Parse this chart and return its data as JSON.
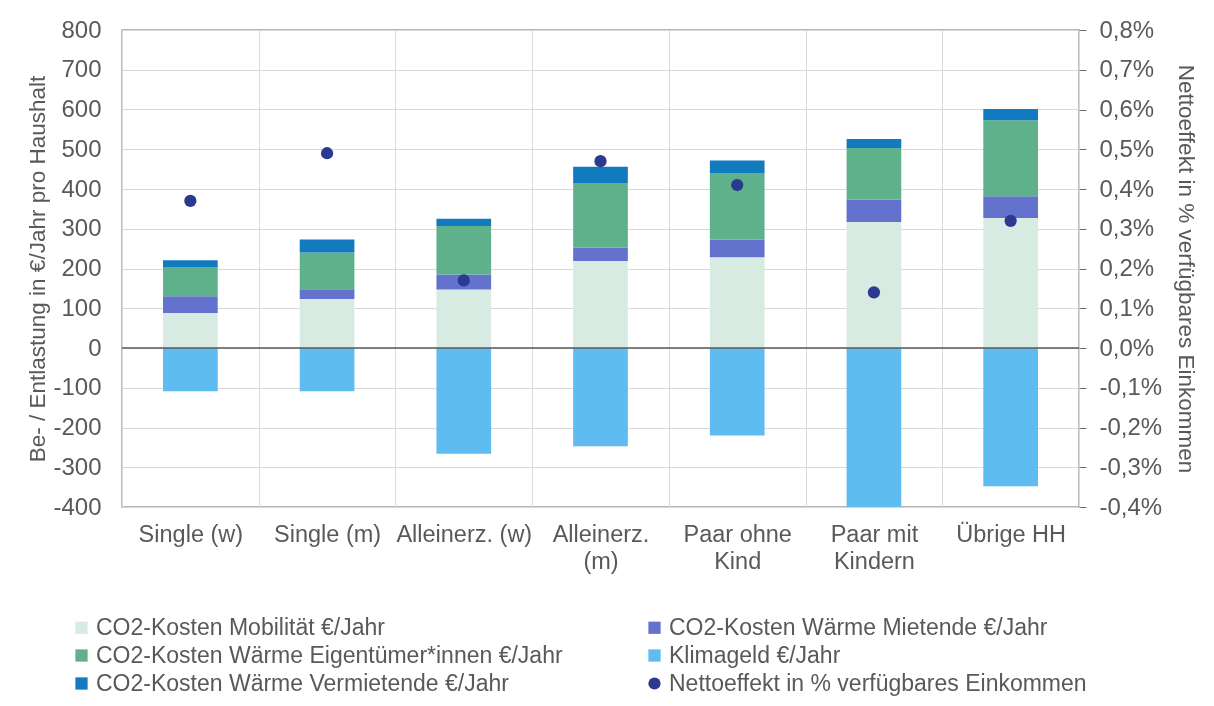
{
  "chart_data": {
    "type": "bar",
    "stacked": true,
    "categories": [
      "Single (w)",
      "Single (m)",
      "Alleinerz. (w)",
      "Alleinerz.\n(m)",
      "Paar ohne\nKind",
      "Paar mit\nKindern",
      "Übrige HH"
    ],
    "series": [
      {
        "name": "CO2-Kosten Mobilität €/Jahr",
        "color": "#d7ebe2",
        "values": [
          88,
          123,
          147,
          219,
          228,
          317,
          327
        ]
      },
      {
        "name": "CO2-Kosten Wärme Mietende €/Jahr",
        "color": "#6372cd",
        "values": [
          42,
          25,
          38,
          34,
          45,
          56,
          55
        ]
      },
      {
        "name": "CO2-Kosten Wärme Eigentümer*innen €/Jahr",
        "color": "#5eb18b",
        "values": [
          74,
          92,
          122,
          162,
          166,
          130,
          191
        ]
      },
      {
        "name": "Klimageld €/Jahr",
        "color": "#5ebcf0",
        "values": [
          -109,
          -109,
          -266,
          -247,
          -220,
          -400,
          -348
        ]
      },
      {
        "name": "CO2-Kosten Wärme Vermietende €/Jahr",
        "color": "#127bbf",
        "values": [
          17,
          33,
          18,
          41,
          33,
          23,
          28
        ]
      },
      {
        "name": "Nettoeffekt in % verfügbares Einkommen",
        "type": "scatter",
        "axis": "y2",
        "color": "#2b3990",
        "x": [
          "Single (w)",
          "Single (m)",
          "Alleinerz. (w)",
          "Alleinerz.\n(m)",
          "Paar ohne\nKind",
          "Paar mit\nKindern",
          "Übrige HH"
        ],
        "values": [
          0.37,
          0.49,
          0.17,
          0.47,
          0.41,
          0.14,
          0.32
        ]
      }
    ],
    "ylabel": "Be- / Entlastung in €/Jahr pro Haushalt",
    "y2label": "Nettoeffekt in % verfügbares Einkommen",
    "ylim": [
      -400,
      800
    ],
    "yticks": [
      -400,
      -300,
      -200,
      -100,
      0,
      100,
      200,
      300,
      400,
      500,
      600,
      700,
      800
    ],
    "y2lim": [
      -0.4,
      0.8
    ],
    "y2ticks": [
      {
        "value": -0.4,
        "label": "-0,4%"
      },
      {
        "value": -0.3,
        "label": "-0,3%"
      },
      {
        "value": -0.2,
        "label": "-0,2%"
      },
      {
        "value": -0.1,
        "label": "-0,1%"
      },
      {
        "value": 0.0,
        "label": "0,0%"
      },
      {
        "value": 0.1,
        "label": "0,1%"
      },
      {
        "value": 0.2,
        "label": "0,2%"
      },
      {
        "value": 0.3,
        "label": "0,3%"
      },
      {
        "value": 0.4,
        "label": "0,4%"
      },
      {
        "value": 0.5,
        "label": "0,5%"
      },
      {
        "value": 0.6,
        "label": "0,6%"
      },
      {
        "value": 0.7,
        "label": "0,7%"
      },
      {
        "value": 0.8,
        "label": "0,8%"
      }
    ],
    "ref_lines": [
      {
        "axis": "y",
        "value": 0,
        "color": "#595959"
      }
    ],
    "grid": true,
    "legend": "bottom",
    "marker": "circle"
  }
}
